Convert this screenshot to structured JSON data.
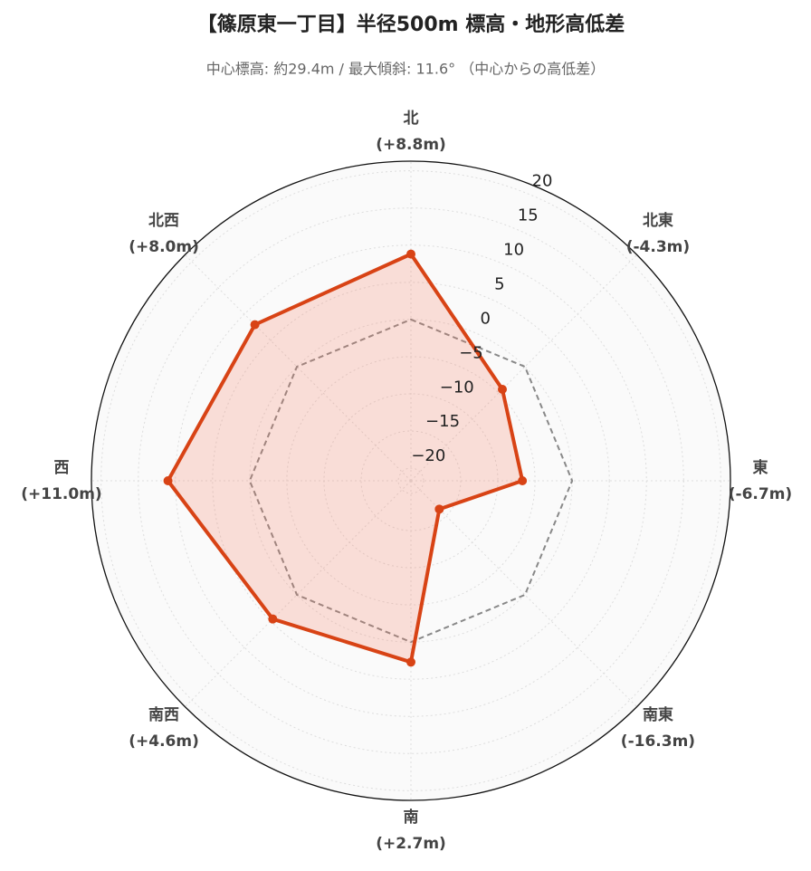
{
  "chart_data": {
    "type": "radar",
    "title": "【篠原東一丁目】半径500m 標高・地形高低差",
    "subtitle": "中心標高: 約29.4m / 最大傾斜: 11.6° （中心からの高低差）",
    "categories": [
      "北",
      "北東",
      "東",
      "南東",
      "南",
      "南西",
      "西",
      "北西"
    ],
    "series": [
      {
        "color": "#d84315",
        "fill": "rgba(244,120,90,0.22)",
        "values": [
          8.8,
          -4.3,
          -6.7,
          -16.3,
          2.7,
          4.6,
          11.0,
          8.0
        ],
        "value_labels": [
          "(+8.8m)",
          "(-4.3m)",
          "(-6.7m)",
          "(-16.3m)",
          "(+2.7m)",
          "(+4.6m)",
          "(+11.0m)",
          "(+8.0m)"
        ]
      }
    ],
    "reference_line": {
      "value": 0,
      "color": "#888888",
      "dashed": true
    },
    "ylim": [
      -21.7,
      21.3
    ],
    "yticks": [
      {
        "value": -20,
        "label": "−20"
      },
      {
        "value": -15,
        "label": "−15"
      },
      {
        "value": -10,
        "label": "−10"
      },
      {
        "value": -5,
        "label": "−5"
      },
      0,
      5,
      10,
      15,
      20
    ],
    "grid": true
  }
}
